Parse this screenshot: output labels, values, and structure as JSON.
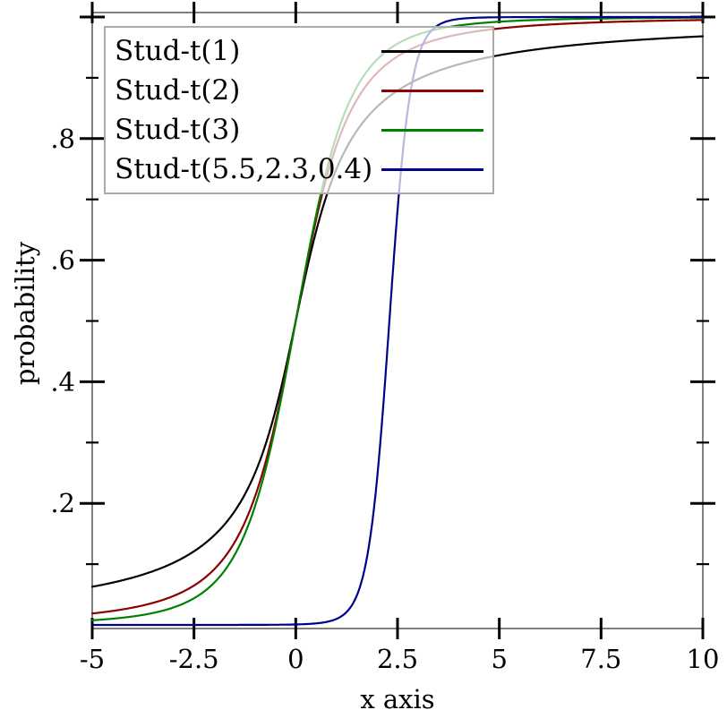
{
  "chart_data": {
    "type": "line",
    "curve_family": "Student-t cumulative distribution function",
    "title": "",
    "xlabel": "x axis",
    "ylabel": "probability",
    "xlim": [
      -5,
      10
    ],
    "ylim": [
      0,
      1
    ],
    "grid": false,
    "legend_position": "top-left",
    "x_ticks": [
      {
        "value": -5,
        "label": "-5"
      },
      {
        "value": -2.5,
        "label": "-2.5"
      },
      {
        "value": 0,
        "label": "0"
      },
      {
        "value": 2.5,
        "label": "2.5"
      },
      {
        "value": 5,
        "label": "5"
      },
      {
        "value": 7.5,
        "label": "7.5"
      },
      {
        "value": 10,
        "label": "10"
      }
    ],
    "y_major_ticks": [
      {
        "value": 0.2,
        "label": ".2"
      },
      {
        "value": 0.4,
        "label": ".4"
      },
      {
        "value": 0.6,
        "label": ".6"
      },
      {
        "value": 0.8,
        "label": ".8"
      },
      {
        "value": 1.0,
        "label": ""
      }
    ],
    "y_minor_ticks": [
      0.1,
      0.3,
      0.5,
      0.7,
      0.9
    ],
    "sample_x": [
      -5,
      -4,
      -3,
      -2,
      -1,
      0,
      1,
      2,
      2.5,
      3,
      4,
      5,
      6,
      8,
      10
    ],
    "series": [
      {
        "name": "Stud-t(1)",
        "df": 1,
        "loc": 0,
        "scale": 1,
        "color": "#000000",
        "values": [
          0.063,
          0.078,
          0.102,
          0.148,
          0.25,
          0.5,
          0.75,
          0.852,
          0.879,
          0.898,
          0.922,
          0.937,
          0.947,
          0.96,
          0.968
        ]
      },
      {
        "name": "Stud-t(2)",
        "df": 2,
        "loc": 0,
        "scale": 1,
        "color": "#8b0000",
        "values": [
          0.019,
          0.029,
          0.048,
          0.092,
          0.211,
          0.5,
          0.789,
          0.908,
          0.935,
          0.952,
          0.971,
          0.981,
          0.987,
          0.992,
          0.995
        ]
      },
      {
        "name": "Stud-t(3)",
        "df": 3,
        "loc": 0,
        "scale": 1,
        "color": "#008000",
        "values": [
          0.008,
          0.014,
          0.029,
          0.07,
          0.196,
          0.5,
          0.804,
          0.93,
          0.956,
          0.971,
          0.986,
          0.992,
          0.995,
          0.998,
          0.999
        ]
      },
      {
        "name": "Stud-t(5.5,2.3,0.4)",
        "df": 5.5,
        "loc": 2.3,
        "scale": 0.4,
        "color": "#00008b",
        "values": [
          0.0,
          0.0,
          0.0,
          0.0,
          0.0,
          0.001,
          0.01,
          0.241,
          0.682,
          0.932,
          0.997,
          0.9996,
          0.9999,
          1.0,
          1.0
        ]
      }
    ],
    "style": {
      "frame_color": "#808080",
      "tick_color": "#000000",
      "text_color": "#000000",
      "legend_border_color": "#ababab",
      "legend_background": "rgba(255,255,255,0.72)",
      "background": "#ffffff"
    }
  }
}
